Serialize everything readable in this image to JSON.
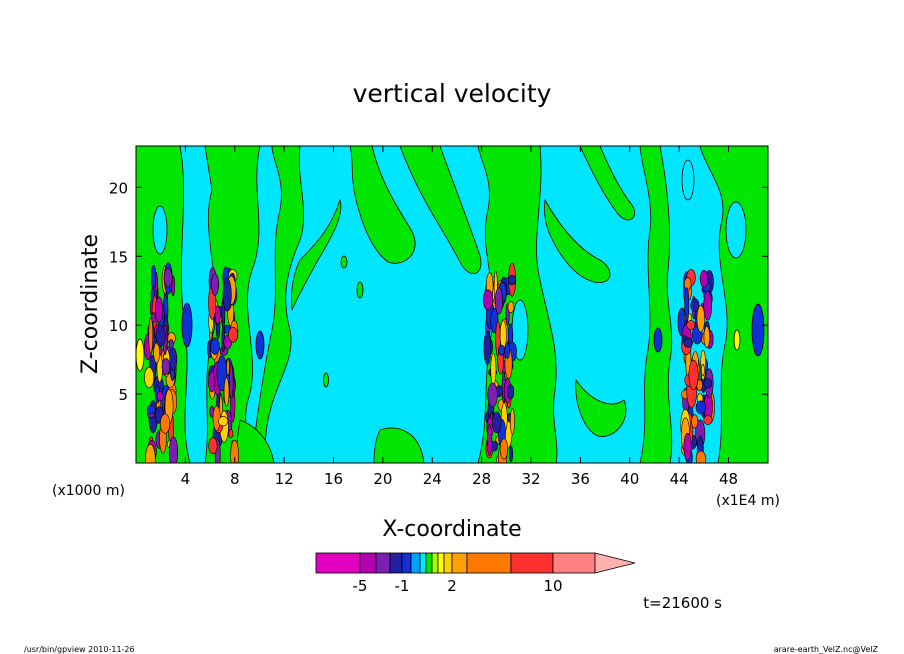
{
  "chart_data": {
    "type": "heatmap",
    "title": "vertical velocity",
    "xlabel": "X-coordinate",
    "ylabel": "Z-coordinate",
    "x_unit_left": "(x1000 m)",
    "x_unit_right": "(x1E4 m)",
    "xlim": [
      0,
      51.2
    ],
    "ylim": [
      0,
      23
    ],
    "xticks": [
      4,
      8,
      12,
      16,
      20,
      24,
      28,
      32,
      36,
      40,
      44,
      48
    ],
    "yticks": [
      5,
      10,
      15,
      20
    ],
    "time_label": "t=21600 s",
    "colorbar": {
      "levels": [
        -10,
        -5,
        -3,
        -2,
        -1,
        -0.5,
        -0.2,
        0,
        0.2,
        0.5,
        1,
        2,
        3,
        5,
        10,
        15,
        20
      ],
      "tick_labels": [
        {
          "value": -5,
          "label": "-5"
        },
        {
          "value": -1,
          "label": "-1"
        },
        {
          "value": 2,
          "label": "2"
        },
        {
          "value": 10,
          "label": "10"
        }
      ],
      "colors": [
        "#e000c0",
        "#b000b0",
        "#7a20b0",
        "#2020a0",
        "#1030d8",
        "#00a0ff",
        "#00e6ff",
        "#00e600",
        "#a0ff00",
        "#ffff00",
        "#ffd000",
        "#ffa000",
        "#ff7800",
        "#ff3030",
        "#ff8080",
        "#ffb0b0"
      ]
    },
    "field_colors": {
      "background_positive": "#00e6ff",
      "band_negative": "#00e600",
      "strong_up": "#ff7800",
      "strong_down": "#2020a0"
    },
    "convective_columns_x": [
      2,
      7,
      29.5,
      45.5
    ]
  },
  "footer": {
    "left": "/usr/bin/gpview   2010-11-26",
    "right": "arare-earth_VelZ.nc@VelZ"
  }
}
